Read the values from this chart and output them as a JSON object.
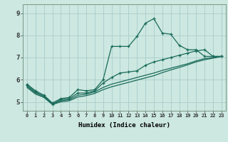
{
  "xlabel": "Humidex (Indice chaleur)",
  "ylabel": "",
  "bg_color": "#cce8e0",
  "grid_color": "#aacccc",
  "line_color": "#1a6b5a",
  "xmin": -0.5,
  "xmax": 23.5,
  "ymin": 4.6,
  "ymax": 9.4,
  "line1_x": [
    0,
    1,
    2,
    3,
    4,
    5,
    6,
    7,
    8,
    9,
    10,
    11,
    12,
    13,
    14,
    15,
    16,
    17,
    18,
    19,
    20,
    21,
    22,
    23
  ],
  "line1_y": [
    5.8,
    5.5,
    5.3,
    4.95,
    5.15,
    5.2,
    5.55,
    5.5,
    5.55,
    6.0,
    7.5,
    7.5,
    7.5,
    7.95,
    8.55,
    8.75,
    8.1,
    8.05,
    7.55,
    7.35,
    7.35,
    7.05,
    7.05,
    7.05
  ],
  "line2_x": [
    0,
    1,
    2,
    3,
    4,
    5,
    6,
    7,
    8,
    9,
    10,
    11,
    12,
    13,
    14,
    15,
    16,
    17,
    18,
    19,
    20,
    21,
    22,
    23
  ],
  "line2_y": [
    5.75,
    5.45,
    5.25,
    4.9,
    5.1,
    5.15,
    5.4,
    5.4,
    5.5,
    5.85,
    6.1,
    6.3,
    6.35,
    6.4,
    6.65,
    6.8,
    6.9,
    7.0,
    7.1,
    7.2,
    7.3,
    7.35,
    7.05,
    7.05
  ],
  "line3_x": [
    0,
    1,
    2,
    3,
    4,
    5,
    6,
    7,
    8,
    9,
    10,
    11,
    12,
    13,
    14,
    15,
    16,
    17,
    18,
    19,
    20,
    21,
    22,
    23
  ],
  "line3_y": [
    5.7,
    5.4,
    5.25,
    4.9,
    5.05,
    5.1,
    5.3,
    5.35,
    5.45,
    5.65,
    5.8,
    5.9,
    6.0,
    6.1,
    6.2,
    6.3,
    6.42,
    6.52,
    6.62,
    6.72,
    6.85,
    6.95,
    7.0,
    7.05
  ],
  "line4_x": [
    0,
    1,
    2,
    3,
    4,
    5,
    6,
    7,
    8,
    9,
    10,
    11,
    12,
    13,
    14,
    15,
    16,
    17,
    18,
    19,
    20,
    21,
    22,
    23
  ],
  "line4_y": [
    5.65,
    5.35,
    5.2,
    4.88,
    5.0,
    5.05,
    5.22,
    5.28,
    5.38,
    5.55,
    5.68,
    5.78,
    5.88,
    5.98,
    6.08,
    6.18,
    6.32,
    6.44,
    6.55,
    6.67,
    6.8,
    6.9,
    6.97,
    7.05
  ],
  "xtick_labels": [
    "0",
    "1",
    "2",
    "3",
    "4",
    "5",
    "6",
    "7",
    "8",
    "9",
    "10",
    "11",
    "12",
    "13",
    "14",
    "15",
    "16",
    "17",
    "18",
    "19",
    "20",
    "21",
    "22",
    "23"
  ],
  "ytick_values": [
    5,
    6,
    7,
    8,
    9
  ]
}
